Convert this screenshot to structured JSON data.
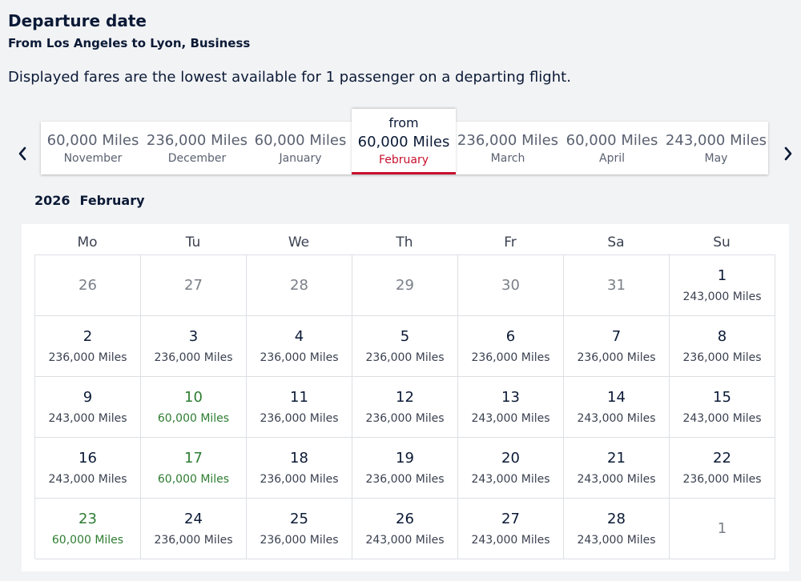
{
  "header": {
    "title": "Departure date",
    "route": "From Los Angeles to Lyon, Business",
    "note": "Displayed fares are the lowest available for 1 passenger on a departing flight."
  },
  "nav": {
    "prev_icon": "chevron-left-icon",
    "next_icon": "chevron-right-icon"
  },
  "months": [
    {
      "miles": "60,000 Miles",
      "name": "November"
    },
    {
      "miles": "236,000 Miles",
      "name": "December"
    },
    {
      "miles": "60,000 Miles",
      "name": "January"
    },
    {
      "from": "from",
      "miles": "60,000 Miles",
      "name": "February",
      "active": true
    },
    {
      "miles": "236,000 Miles",
      "name": "March"
    },
    {
      "miles": "60,000 Miles",
      "name": "April"
    },
    {
      "miles": "243,000 Miles",
      "name": "May"
    }
  ],
  "calendar": {
    "year": "2026",
    "month": "February",
    "weekdays": [
      "Mo",
      "Tu",
      "We",
      "Th",
      "Fr",
      "Sa",
      "Su"
    ],
    "days": [
      {
        "day": "26",
        "price": "",
        "muted": true
      },
      {
        "day": "27",
        "price": "",
        "muted": true
      },
      {
        "day": "28",
        "price": "",
        "muted": true
      },
      {
        "day": "29",
        "price": "",
        "muted": true
      },
      {
        "day": "30",
        "price": "",
        "muted": true
      },
      {
        "day": "31",
        "price": "",
        "muted": true
      },
      {
        "day": "1",
        "price": "243,000 Miles"
      },
      {
        "day": "2",
        "price": "236,000 Miles"
      },
      {
        "day": "3",
        "price": "236,000 Miles"
      },
      {
        "day": "4",
        "price": "236,000 Miles"
      },
      {
        "day": "5",
        "price": "236,000 Miles"
      },
      {
        "day": "6",
        "price": "236,000 Miles"
      },
      {
        "day": "7",
        "price": "236,000 Miles"
      },
      {
        "day": "8",
        "price": "236,000 Miles"
      },
      {
        "day": "9",
        "price": "243,000 Miles"
      },
      {
        "day": "10",
        "price": "60,000 Miles",
        "cheap": true
      },
      {
        "day": "11",
        "price": "236,000 Miles"
      },
      {
        "day": "12",
        "price": "236,000 Miles"
      },
      {
        "day": "13",
        "price": "243,000 Miles"
      },
      {
        "day": "14",
        "price": "243,000 Miles"
      },
      {
        "day": "15",
        "price": "243,000 Miles"
      },
      {
        "day": "16",
        "price": "243,000 Miles"
      },
      {
        "day": "17",
        "price": "60,000 Miles",
        "cheap": true
      },
      {
        "day": "18",
        "price": "236,000 Miles"
      },
      {
        "day": "19",
        "price": "236,000 Miles"
      },
      {
        "day": "20",
        "price": "243,000 Miles"
      },
      {
        "day": "21",
        "price": "243,000 Miles"
      },
      {
        "day": "22",
        "price": "236,000 Miles"
      },
      {
        "day": "23",
        "price": "60,000 Miles",
        "cheap": true
      },
      {
        "day": "24",
        "price": "236,000 Miles"
      },
      {
        "day": "25",
        "price": "236,000 Miles"
      },
      {
        "day": "26",
        "price": "243,000 Miles"
      },
      {
        "day": "27",
        "price": "243,000 Miles"
      },
      {
        "day": "28",
        "price": "243,000 Miles"
      },
      {
        "day": "1",
        "price": "",
        "muted": true
      }
    ]
  },
  "colors": {
    "text": "#0b1a36",
    "accent_red": "#c8102e",
    "cheap_green": "#2e7d32",
    "muted": "#7a7f88"
  }
}
